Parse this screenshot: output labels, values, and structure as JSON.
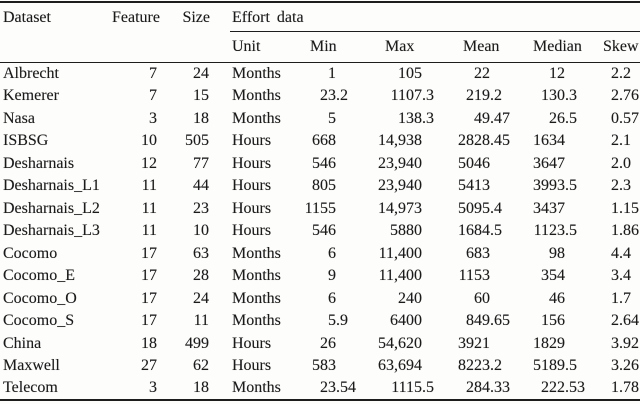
{
  "page": {
    "background": "#fdfdfc",
    "ink": "#1b1b1b"
  },
  "table": {
    "header_row1": {
      "dataset": "Dataset",
      "feature": "Feature",
      "size": "Size",
      "effort": "Effort data"
    },
    "header_row2": {
      "unit": "Unit",
      "min": "Min",
      "max": "Max",
      "mean": "Mean",
      "median": "Median",
      "skew": "Skew"
    },
    "rows": [
      {
        "dataset": "Albrecht",
        "feature": "7",
        "size": "24",
        "unit": "Months",
        "min": "1",
        "max": "105",
        "mean": "22",
        "median": "12",
        "skew": "2.2"
      },
      {
        "dataset": "Kemerer",
        "feature": "7",
        "size": "15",
        "unit": "Months",
        "min": "23.2",
        "max": "1107.3",
        "mean": "219.2",
        "median": "130.3",
        "skew": "2.76"
      },
      {
        "dataset": "Nasa",
        "feature": "3",
        "size": "18",
        "unit": "Months",
        "min": "5",
        "max": "138.3",
        "mean": "49.47",
        "median": "26.5",
        "skew": "0.57"
      },
      {
        "dataset": "ISBSG",
        "feature": "10",
        "size": "505",
        "unit": "Hours",
        "min": "668",
        "max": "14,938",
        "mean": "2828.45",
        "median": "1634",
        "skew": "2.1"
      },
      {
        "dataset": "Desharnais",
        "feature": "12",
        "size": "77",
        "unit": "Hours",
        "min": "546",
        "max": "23,940",
        "mean": "5046",
        "median": "3647",
        "skew": "2.0"
      },
      {
        "dataset": "Desharnais_L1",
        "feature": "11",
        "size": "44",
        "unit": "Hours",
        "min": "805",
        "max": "23,940",
        "mean": "5413",
        "median": "3993.5",
        "skew": "2.3"
      },
      {
        "dataset": "Desharnais_L2",
        "feature": "11",
        "size": "23",
        "unit": "Hours",
        "min": "1155",
        "max": "14,973",
        "mean": "5095.4",
        "median": "3437",
        "skew": "1.15"
      },
      {
        "dataset": "Desharnais_L3",
        "feature": "11",
        "size": "10",
        "unit": "Hours",
        "min": "546",
        "max": "5880",
        "mean": "1684.5",
        "median": "1123.5",
        "skew": "1.86"
      },
      {
        "dataset": "Cocomo",
        "feature": "17",
        "size": "63",
        "unit": "Months",
        "min": "6",
        "max": "11,400",
        "mean": "683",
        "median": "98",
        "skew": "4.4"
      },
      {
        "dataset": "Cocomo_E",
        "feature": "17",
        "size": "28",
        "unit": "Months",
        "min": "9",
        "max": "11,400",
        "mean": "1153",
        "median": "354",
        "skew": "3.4"
      },
      {
        "dataset": "Cocomo_O",
        "feature": "17",
        "size": "24",
        "unit": "Months",
        "min": "6",
        "max": "240",
        "mean": "60",
        "median": "46",
        "skew": "1.7"
      },
      {
        "dataset": "Cocomo_S",
        "feature": "17",
        "size": "11",
        "unit": "Months",
        "min": "5.9",
        "max": "6400",
        "mean": "849.65",
        "median": "156",
        "skew": "2.64"
      },
      {
        "dataset": "China",
        "feature": "18",
        "size": "499",
        "unit": "Hours",
        "min": "26",
        "max": "54,620",
        "mean": "3921",
        "median": "1829",
        "skew": "3.92"
      },
      {
        "dataset": "Maxwell",
        "feature": "27",
        "size": "62",
        "unit": "Hours",
        "min": "583",
        "max": "63,694",
        "mean": "8223.2",
        "median": "5189.5",
        "skew": "3.26"
      },
      {
        "dataset": "Telecom",
        "feature": "3",
        "size": "18",
        "unit": "Months",
        "min": "23.54",
        "max": "1115.5",
        "mean": "284.33",
        "median": "222.53",
        "skew": "1.78"
      }
    ]
  }
}
